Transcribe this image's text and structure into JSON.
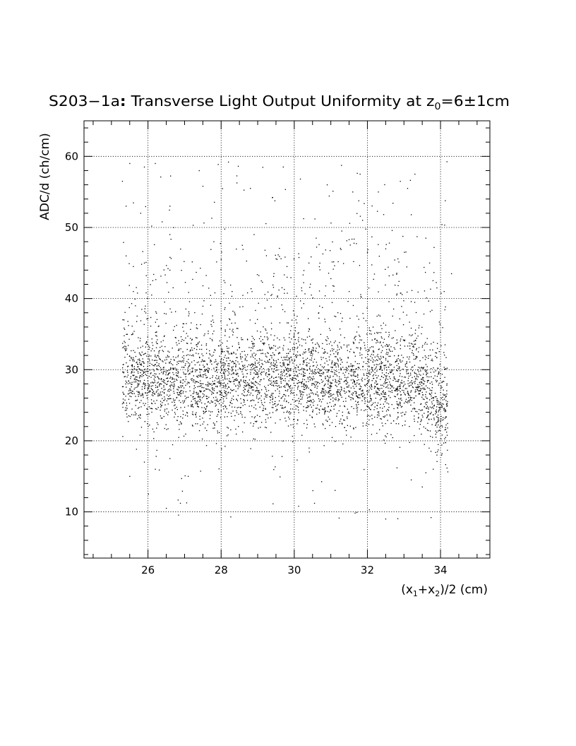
{
  "chart_data": {
    "type": "scatter",
    "title": {
      "prefix": "S203−1a",
      "colon": ":",
      "main": " Transverse Light Output Uniformity at z",
      "sub": "0",
      "suffix": "=6±1cm"
    },
    "xlabel": {
      "p1": "(x",
      "s1": "1",
      "p2": "+x",
      "s2": "2",
      "p3": ")/2 (cm)"
    },
    "ylabel": "ADC/d (ch/cm)",
    "xlim": [
      24.25,
      35.35
    ],
    "ylim": [
      3.5,
      65.0
    ],
    "xticks": [
      26,
      28,
      30,
      32,
      34
    ],
    "xtick_labels": [
      "26",
      "28",
      "30",
      "32",
      "34"
    ],
    "yticks": [
      10,
      20,
      30,
      40,
      50,
      60
    ],
    "ytick_labels": [
      "10",
      "20",
      "30",
      "40",
      "50",
      "60"
    ],
    "x_minor_step": 0.5,
    "y_minor_step": 2,
    "grid": true,
    "grid_style": "dotted",
    "marker_color": "#000000",
    "point_count": 4200,
    "distribution": {
      "x_range": [
        25.3,
        34.2
      ],
      "core_mean_y": 28.5,
      "core_spread_y": 3.3,
      "right_edge_mean_y": 23.5,
      "tail_max_y": 59.5,
      "tail_min_y": 9.0
    },
    "points": [
      [
        25.3,
        56.5
      ],
      [
        25.5,
        59.0
      ],
      [
        25.9,
        58.5
      ],
      [
        26.2,
        59.0
      ],
      [
        27.4,
        58.0
      ],
      [
        28.2,
        59.2
      ],
      [
        29.7,
        58.5
      ],
      [
        31.8,
        57.5
      ],
      [
        32.9,
        56.5
      ],
      [
        33.3,
        57.5
      ],
      [
        33.1,
        55.5
      ],
      [
        25.4,
        53.0
      ],
      [
        25.8,
        52.0
      ],
      [
        26.6,
        53.0
      ],
      [
        27.5,
        55.8
      ],
      [
        28.8,
        55.5
      ],
      [
        29.4,
        54.2
      ],
      [
        30.9,
        56.0
      ],
      [
        31.6,
        55.0
      ],
      [
        32.3,
        55.0
      ],
      [
        33.2,
        51.8
      ],
      [
        26.1,
        50.2
      ],
      [
        26.7,
        50.0
      ],
      [
        27.8,
        48.0
      ],
      [
        28.9,
        49.0
      ],
      [
        30.6,
        48.5
      ],
      [
        31.3,
        49.5
      ],
      [
        32.5,
        47.0
      ],
      [
        33.6,
        48.5
      ],
      [
        25.4,
        46.0
      ],
      [
        25.6,
        44.5
      ],
      [
        25.9,
        45.0
      ],
      [
        26.6,
        44.0
      ],
      [
        28.0,
        45.5
      ],
      [
        29.2,
        46.8
      ],
      [
        29.8,
        44.5
      ],
      [
        30.4,
        45.0
      ],
      [
        31.0,
        42.8
      ],
      [
        32.0,
        46.5
      ],
      [
        32.6,
        47.8
      ],
      [
        33.7,
        45.0
      ],
      [
        34.3,
        43.5
      ],
      [
        25.6,
        41.0
      ],
      [
        26.1,
        40.5
      ],
      [
        27.5,
        41.8
      ],
      [
        28.3,
        41.0
      ],
      [
        29.1,
        42.5
      ],
      [
        30.2,
        41.5
      ],
      [
        31.5,
        41.0
      ],
      [
        32.0,
        40.0
      ],
      [
        32.8,
        40.5
      ],
      [
        33.9,
        41.5
      ],
      [
        34.1,
        41.0
      ],
      [
        25.5,
        15.0
      ],
      [
        25.9,
        17.0
      ],
      [
        26.2,
        16.0
      ],
      [
        26.6,
        17.5
      ],
      [
        27.1,
        15.0
      ],
      [
        26.5,
        10.5
      ],
      [
        32.5,
        9.0
      ],
      [
        33.2,
        14.5
      ],
      [
        33.5,
        13.5
      ],
      [
        33.6,
        15.5
      ],
      [
        33.8,
        16.0
      ],
      [
        33.9,
        18.0
      ]
    ]
  }
}
